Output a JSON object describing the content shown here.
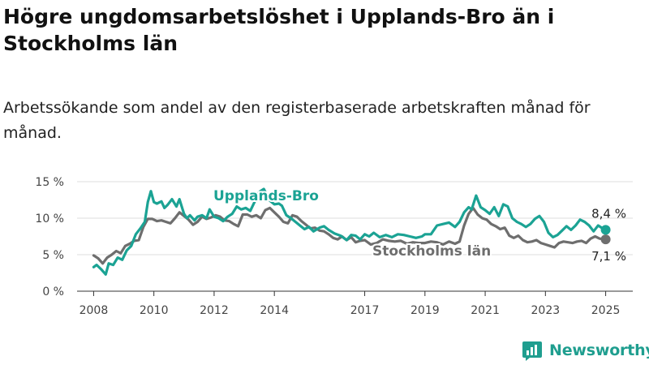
{
  "title": "Högre ungdomsarbetslöshet i Upplands-Bro än i Stockholms län",
  "subtitle": "Arbetssökande som andel av den registerbaserade arbetskraften månad för månad.",
  "brand": {
    "name": "Newsworthy"
  },
  "colors": {
    "upplands_bro": "#1ba394",
    "stockholm": "#6e6e6e",
    "grid": "#dddddd",
    "brand": "#1f9e8f"
  },
  "chart_data": {
    "type": "line",
    "title": "Högre ungdomsarbetslöshet i Upplands-Bro än i Stockholms län",
    "subtitle": "Arbetssökande som andel av den registerbaserade arbetskraften månad för månad.",
    "xlabel": "",
    "ylabel": "",
    "xlim": [
      2008,
      2025.4
    ],
    "ylim": [
      0,
      15
    ],
    "x_ticks": [
      {
        "value": 2008,
        "label": "2008"
      },
      {
        "value": 2010,
        "label": "2010"
      },
      {
        "value": 2012,
        "label": "2012"
      },
      {
        "value": 2014,
        "label": "2014"
      },
      {
        "value": 2017,
        "label": "2017"
      },
      {
        "value": 2019,
        "label": "2019"
      },
      {
        "value": 2021,
        "label": "2021"
      },
      {
        "value": 2023,
        "label": "2023"
      },
      {
        "value": 2025,
        "label": "2025"
      }
    ],
    "y_ticks": [
      {
        "value": 0,
        "label": "0 %"
      },
      {
        "value": 5,
        "label": "5 %"
      },
      {
        "value": 10,
        "label": "10 %"
      },
      {
        "value": 15,
        "label": "15 %"
      }
    ],
    "grid": true,
    "legend": "inline labels",
    "series": [
      {
        "name": "Upplands-Bro",
        "color": "#1ba394",
        "end_label": "8,4 %",
        "points": [
          [
            2008.0,
            3.3
          ],
          [
            2008.1,
            3.6
          ],
          [
            2008.25,
            3.0
          ],
          [
            2008.4,
            2.3
          ],
          [
            2008.5,
            3.8
          ],
          [
            2008.65,
            3.6
          ],
          [
            2008.8,
            4.6
          ],
          [
            2008.95,
            4.3
          ],
          [
            2009.1,
            5.6
          ],
          [
            2009.25,
            6.2
          ],
          [
            2009.4,
            7.8
          ],
          [
            2009.55,
            8.6
          ],
          [
            2009.7,
            9.5
          ],
          [
            2009.8,
            12.2
          ],
          [
            2009.9,
            13.7
          ],
          [
            2010.0,
            12.2
          ],
          [
            2010.1,
            12.0
          ],
          [
            2010.25,
            12.3
          ],
          [
            2010.35,
            11.4
          ],
          [
            2010.45,
            11.8
          ],
          [
            2010.6,
            12.6
          ],
          [
            2010.75,
            11.6
          ],
          [
            2010.85,
            12.6
          ],
          [
            2011.0,
            10.6
          ],
          [
            2011.1,
            10.0
          ],
          [
            2011.2,
            10.4
          ],
          [
            2011.35,
            9.7
          ],
          [
            2011.45,
            10.2
          ],
          [
            2011.6,
            10.4
          ],
          [
            2011.75,
            10.0
          ],
          [
            2011.85,
            11.2
          ],
          [
            2012.0,
            10.2
          ],
          [
            2012.15,
            10.0
          ],
          [
            2012.3,
            9.6
          ],
          [
            2012.45,
            10.2
          ],
          [
            2012.6,
            10.6
          ],
          [
            2012.75,
            11.6
          ],
          [
            2012.9,
            11.2
          ],
          [
            2013.05,
            11.4
          ],
          [
            2013.2,
            11.0
          ],
          [
            2013.35,
            12.3
          ],
          [
            2013.5,
            13.6
          ],
          [
            2013.65,
            14.0
          ],
          [
            2013.75,
            13.2
          ],
          [
            2013.85,
            12.4
          ],
          [
            2014.0,
            11.9
          ],
          [
            2014.15,
            12.0
          ],
          [
            2014.25,
            11.7
          ],
          [
            2014.4,
            10.4
          ],
          [
            2014.55,
            10.0
          ],
          [
            2014.7,
            9.5
          ],
          [
            2014.85,
            9.0
          ],
          [
            2015.0,
            8.5
          ],
          [
            2015.15,
            8.8
          ],
          [
            2015.3,
            8.2
          ],
          [
            2015.5,
            8.7
          ],
          [
            2015.65,
            8.9
          ],
          [
            2015.8,
            8.4
          ],
          [
            2016.0,
            7.9
          ],
          [
            2016.2,
            7.6
          ],
          [
            2016.4,
            7.0
          ],
          [
            2016.55,
            7.7
          ],
          [
            2016.7,
            7.6
          ],
          [
            2016.85,
            7.1
          ],
          [
            2017.0,
            7.8
          ],
          [
            2017.15,
            7.5
          ],
          [
            2017.3,
            8.0
          ],
          [
            2017.5,
            7.4
          ],
          [
            2017.7,
            7.7
          ],
          [
            2017.9,
            7.4
          ],
          [
            2018.1,
            7.8
          ],
          [
            2018.3,
            7.7
          ],
          [
            2018.5,
            7.5
          ],
          [
            2018.7,
            7.3
          ],
          [
            2018.9,
            7.5
          ],
          [
            2019.0,
            7.8
          ],
          [
            2019.2,
            7.8
          ],
          [
            2019.4,
            9.0
          ],
          [
            2019.6,
            9.2
          ],
          [
            2019.8,
            9.4
          ],
          [
            2020.0,
            8.8
          ],
          [
            2020.15,
            9.5
          ],
          [
            2020.3,
            10.8
          ],
          [
            2020.45,
            11.5
          ],
          [
            2020.55,
            11.2
          ],
          [
            2020.7,
            13.1
          ],
          [
            2020.85,
            11.5
          ],
          [
            2021.0,
            11.1
          ],
          [
            2021.15,
            10.6
          ],
          [
            2021.3,
            11.5
          ],
          [
            2021.45,
            10.3
          ],
          [
            2021.6,
            11.9
          ],
          [
            2021.75,
            11.6
          ],
          [
            2021.9,
            10.0
          ],
          [
            2022.05,
            9.5
          ],
          [
            2022.2,
            9.2
          ],
          [
            2022.35,
            8.8
          ],
          [
            2022.5,
            9.2
          ],
          [
            2022.65,
            9.9
          ],
          [
            2022.8,
            10.3
          ],
          [
            2022.95,
            9.5
          ],
          [
            2023.1,
            8.0
          ],
          [
            2023.25,
            7.4
          ],
          [
            2023.4,
            7.7
          ],
          [
            2023.55,
            8.3
          ],
          [
            2023.7,
            8.9
          ],
          [
            2023.85,
            8.4
          ],
          [
            2024.0,
            9.0
          ],
          [
            2024.15,
            9.8
          ],
          [
            2024.3,
            9.5
          ],
          [
            2024.45,
            9.0
          ],
          [
            2024.6,
            8.2
          ],
          [
            2024.75,
            9.0
          ],
          [
            2024.9,
            8.6
          ],
          [
            2025.0,
            8.4
          ]
        ]
      },
      {
        "name": "Stockholms län",
        "color": "#6e6e6e",
        "end_label": "7,1 %",
        "points": [
          [
            2008.0,
            4.9
          ],
          [
            2008.15,
            4.5
          ],
          [
            2008.3,
            3.8
          ],
          [
            2008.45,
            4.6
          ],
          [
            2008.6,
            5.0
          ],
          [
            2008.75,
            5.5
          ],
          [
            2008.9,
            5.2
          ],
          [
            2009.05,
            6.2
          ],
          [
            2009.2,
            6.5
          ],
          [
            2009.35,
            6.9
          ],
          [
            2009.5,
            7.0
          ],
          [
            2009.65,
            8.8
          ],
          [
            2009.8,
            9.9
          ],
          [
            2009.95,
            9.9
          ],
          [
            2010.1,
            9.6
          ],
          [
            2010.25,
            9.7
          ],
          [
            2010.4,
            9.5
          ],
          [
            2010.55,
            9.3
          ],
          [
            2010.7,
            10.0
          ],
          [
            2010.85,
            10.8
          ],
          [
            2011.0,
            10.3
          ],
          [
            2011.15,
            9.8
          ],
          [
            2011.3,
            9.1
          ],
          [
            2011.45,
            9.5
          ],
          [
            2011.6,
            10.2
          ],
          [
            2011.75,
            9.9
          ],
          [
            2011.9,
            10.1
          ],
          [
            2012.05,
            10.4
          ],
          [
            2012.2,
            10.2
          ],
          [
            2012.35,
            9.7
          ],
          [
            2012.5,
            9.6
          ],
          [
            2012.65,
            9.2
          ],
          [
            2012.8,
            8.9
          ],
          [
            2012.95,
            10.5
          ],
          [
            2013.1,
            10.5
          ],
          [
            2013.25,
            10.2
          ],
          [
            2013.4,
            10.4
          ],
          [
            2013.55,
            10.0
          ],
          [
            2013.7,
            11.1
          ],
          [
            2013.85,
            11.4
          ],
          [
            2014.0,
            10.8
          ],
          [
            2014.15,
            10.2
          ],
          [
            2014.3,
            9.5
          ],
          [
            2014.45,
            9.3
          ],
          [
            2014.6,
            10.4
          ],
          [
            2014.75,
            10.2
          ],
          [
            2014.9,
            9.6
          ],
          [
            2015.05,
            9.1
          ],
          [
            2015.2,
            8.6
          ],
          [
            2015.35,
            8.7
          ],
          [
            2015.5,
            8.3
          ],
          [
            2015.65,
            8.2
          ],
          [
            2015.8,
            7.8
          ],
          [
            2015.95,
            7.3
          ],
          [
            2016.1,
            7.1
          ],
          [
            2016.25,
            7.5
          ],
          [
            2016.4,
            7.0
          ],
          [
            2016.55,
            7.4
          ],
          [
            2016.7,
            6.7
          ],
          [
            2016.85,
            6.9
          ],
          [
            2017.0,
            7.0
          ],
          [
            2017.2,
            6.4
          ],
          [
            2017.4,
            6.6
          ],
          [
            2017.6,
            7.1
          ],
          [
            2017.8,
            6.9
          ],
          [
            2018.0,
            6.8
          ],
          [
            2018.2,
            6.9
          ],
          [
            2018.4,
            6.5
          ],
          [
            2018.6,
            6.7
          ],
          [
            2018.8,
            6.6
          ],
          [
            2019.0,
            6.6
          ],
          [
            2019.2,
            6.8
          ],
          [
            2019.4,
            6.7
          ],
          [
            2019.6,
            6.4
          ],
          [
            2019.8,
            6.8
          ],
          [
            2020.0,
            6.5
          ],
          [
            2020.15,
            6.8
          ],
          [
            2020.3,
            9.0
          ],
          [
            2020.45,
            10.6
          ],
          [
            2020.6,
            11.4
          ],
          [
            2020.75,
            10.5
          ],
          [
            2020.9,
            10.0
          ],
          [
            2021.05,
            9.8
          ],
          [
            2021.2,
            9.2
          ],
          [
            2021.35,
            8.9
          ],
          [
            2021.5,
            8.5
          ],
          [
            2021.65,
            8.7
          ],
          [
            2021.8,
            7.6
          ],
          [
            2021.95,
            7.3
          ],
          [
            2022.1,
            7.6
          ],
          [
            2022.25,
            7.0
          ],
          [
            2022.4,
            6.7
          ],
          [
            2022.55,
            6.8
          ],
          [
            2022.7,
            7.0
          ],
          [
            2022.85,
            6.6
          ],
          [
            2023.0,
            6.4
          ],
          [
            2023.15,
            6.2
          ],
          [
            2023.3,
            6.0
          ],
          [
            2023.45,
            6.6
          ],
          [
            2023.6,
            6.8
          ],
          [
            2023.75,
            6.7
          ],
          [
            2023.9,
            6.6
          ],
          [
            2024.05,
            6.8
          ],
          [
            2024.2,
            6.9
          ],
          [
            2024.35,
            6.6
          ],
          [
            2024.5,
            7.2
          ],
          [
            2024.65,
            7.5
          ],
          [
            2024.8,
            7.2
          ],
          [
            2025.0,
            7.1
          ]
        ]
      }
    ]
  }
}
